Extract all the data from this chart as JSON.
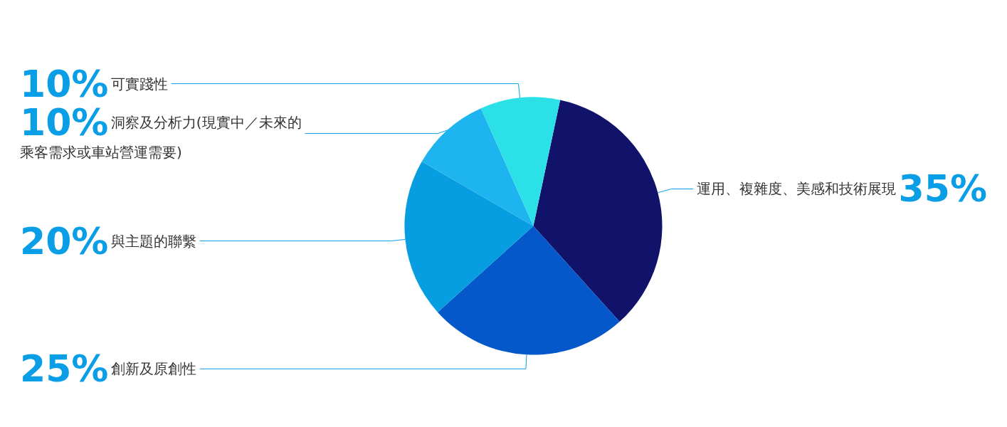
{
  "chart_data": {
    "type": "pie",
    "categories": [
      "運用、複雜度、美感和技術展現",
      "創新及原創性",
      "與主題的聯繫",
      "洞察及分析力(現實中／未來的乘客需求或車站營運需要)",
      "可實踐性"
    ],
    "values": [
      35,
      25,
      20,
      10,
      10
    ],
    "value_labels": [
      "35%",
      "25%",
      "20%",
      "10%",
      "10%"
    ],
    "colors": [
      "#11136b",
      "#0558c9",
      "#069ee0",
      "#1db4f0",
      "#2ce0e8"
    ],
    "legend": false
  }
}
